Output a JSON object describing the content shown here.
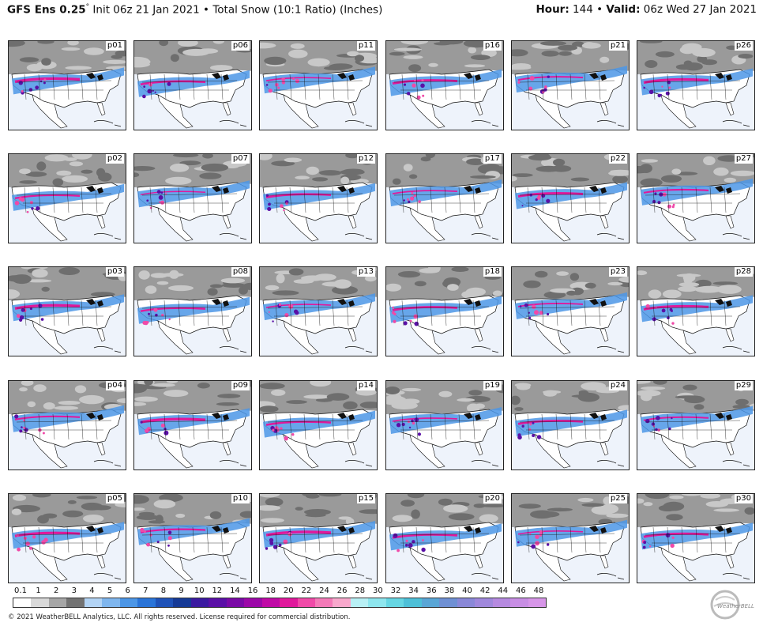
{
  "header": {
    "model": "GFS Ens 0.25",
    "degree": "°",
    "init": " Init 06z 21 Jan 2021",
    "bullet": " • ",
    "product": "Total Snow (10:1 Ratio) (Inches)",
    "hour_label": "Hour:",
    "hour_value": " 144",
    "valid_label": "Valid:",
    "valid_value": " 06z Wed 27 Jan 2021"
  },
  "panels": [
    "p01",
    "p06",
    "p11",
    "p16",
    "p21",
    "p26",
    "p02",
    "p07",
    "p12",
    "p17",
    "p22",
    "p27",
    "p03",
    "p08",
    "p13",
    "p18",
    "p23",
    "p28",
    "p04",
    "p09",
    "p14",
    "p19",
    "p24",
    "p29",
    "p05",
    "p10",
    "p15",
    "p20",
    "p25",
    "p30"
  ],
  "legend": {
    "ticks": [
      "0.1",
      "1",
      "2",
      "3",
      "4",
      "5",
      "6",
      "7",
      "8",
      "9",
      "10",
      "12",
      "14",
      "16",
      "18",
      "20",
      "22",
      "24",
      "26",
      "28",
      "30",
      "32",
      "34",
      "36",
      "38",
      "40",
      "42",
      "44",
      "46",
      "48"
    ],
    "colors": [
      "#ffffff",
      "#d9d9d9",
      "#a6a6a6",
      "#737373",
      "#b3d4f5",
      "#7fb6ee",
      "#4c96e6",
      "#2a74d8",
      "#1f52b8",
      "#163a96",
      "#3b1aa0",
      "#5a10a6",
      "#7a0aa6",
      "#9c08a8",
      "#c00aa6",
      "#e0199c",
      "#f04aa8",
      "#f47ab8",
      "#f8a8cc",
      "#b8f0f5",
      "#8ee6ee",
      "#66d6e3",
      "#4ec0d8",
      "#5aa6d6",
      "#6f90d4",
      "#8a88d8",
      "#a088dc",
      "#b68ae0",
      "#c88ee4",
      "#d796e8"
    ]
  },
  "copyright": "© 2021 WeatherBELL Analytics, LLC. All rights reserved. License required for commercial distribution.",
  "logo_text": "WeatherBELL"
}
